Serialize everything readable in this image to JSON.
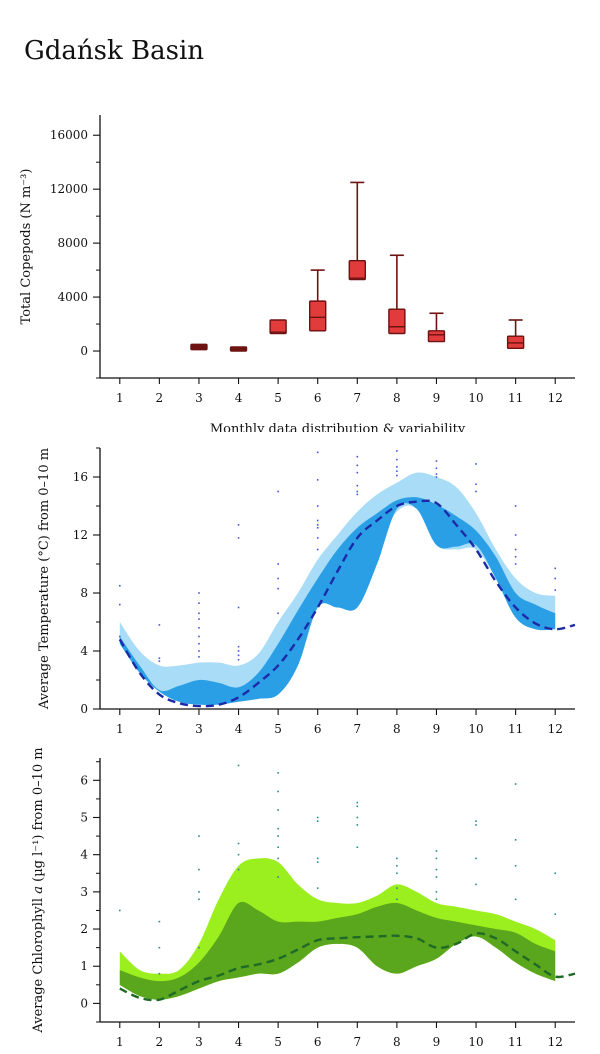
{
  "page": {
    "title": "Gdańsk Basin"
  },
  "colors": {
    "axis": "#111111",
    "box_fill": "#e23b3b",
    "box_fill_dark": "#6e1212",
    "box_stroke": "#6e1212",
    "temp_outer": "#a8dcf7",
    "temp_inner": "#2b9fe6",
    "temp_line": "#1c2aa8",
    "temp_dots": "#3f58e0",
    "chl_outer": "#9bef1f",
    "chl_inner": "#5aa61d",
    "chl_line": "#1f6a26",
    "chl_dots": "#2a8a8a"
  },
  "chart_data": [
    {
      "type": "box",
      "ylabel": "Total Copepods (N m⁻³)",
      "xlabel": "Monthly data distribution & variability",
      "x_ticks": [
        1,
        2,
        3,
        4,
        5,
        6,
        7,
        8,
        9,
        10,
        11,
        12
      ],
      "y_ticks": [
        0,
        4000,
        8000,
        12000,
        16000
      ],
      "xlim": [
        0.5,
        12.5
      ],
      "ylim": [
        -2000,
        17500
      ],
      "boxes": [
        {
          "month": 3,
          "low": 100,
          "q1": 100,
          "median": 300,
          "q3": 500,
          "high": 500,
          "dark": true
        },
        {
          "month": 4,
          "low": 0,
          "q1": 0,
          "median": 200,
          "q3": 300,
          "high": 300,
          "dark": true
        },
        {
          "month": 5,
          "low": 1300,
          "q1": 1300,
          "median": 1400,
          "q3": 2300,
          "high": 2300,
          "dark": false
        },
        {
          "month": 6,
          "low": 1500,
          "q1": 1500,
          "median": 2500,
          "q3": 3700,
          "high": 6000,
          "dark": false
        },
        {
          "month": 7,
          "low": 5300,
          "q1": 5300,
          "median": 5400,
          "q3": 6700,
          "high": 12500,
          "dark": false
        },
        {
          "month": 8,
          "low": 1300,
          "q1": 1300,
          "median": 1800,
          "q3": 3100,
          "high": 7100,
          "dark": false
        },
        {
          "month": 9,
          "low": 700,
          "q1": 700,
          "median": 1200,
          "q3": 1500,
          "high": 2800,
          "dark": false
        },
        {
          "month": 11,
          "low": 200,
          "q1": 200,
          "median": 600,
          "q3": 1100,
          "high": 2300,
          "dark": false
        }
      ]
    },
    {
      "type": "area",
      "ylabel": "Average Temperature (°C) from 0–10 m",
      "x_ticks": [
        1,
        2,
        3,
        4,
        5,
        6,
        7,
        8,
        9,
        10,
        11,
        12
      ],
      "y_ticks": [
        0,
        4,
        8,
        12,
        16
      ],
      "xlim": [
        0.5,
        12.5
      ],
      "ylim": [
        0,
        18
      ],
      "outer_band": {
        "x": [
          1,
          1.5,
          2,
          2.5,
          3,
          3.5,
          4,
          4.5,
          5,
          5.5,
          6,
          6.5,
          7,
          7.5,
          8,
          8.5,
          9,
          9.5,
          10,
          10.5,
          11,
          11.5,
          12
        ],
        "upper": [
          6.0,
          4.0,
          3.0,
          3.0,
          3.2,
          3.2,
          3.0,
          3.8,
          6.0,
          8.0,
          10.3,
          12.0,
          13.6,
          14.8,
          15.6,
          16.3,
          16.0,
          15.3,
          13.5,
          11.0,
          9.0,
          8.0,
          7.8
        ],
        "lower": [
          4.5,
          2.5,
          1.2,
          0.5,
          0.3,
          0.3,
          0.5,
          0.7,
          1.0,
          3.0,
          7.0,
          8.0,
          8.5,
          11.0,
          13.6,
          13.8,
          11.3,
          11.0,
          11.0,
          9.0,
          6.3,
          5.5,
          5.5
        ]
      },
      "inner_band": {
        "x": [
          1,
          1.5,
          2,
          2.5,
          3,
          3.5,
          4,
          4.5,
          5,
          5.5,
          6,
          6.5,
          7,
          7.5,
          8,
          8.5,
          9,
          9.5,
          10,
          10.5,
          11,
          11.5,
          12
        ],
        "upper": [
          5.0,
          3.0,
          1.3,
          1.6,
          2.0,
          1.8,
          1.5,
          2.5,
          4.5,
          6.8,
          9.0,
          11.0,
          12.5,
          13.5,
          14.4,
          14.6,
          14.1,
          13.3,
          12.3,
          10.5,
          8.0,
          7.2,
          6.6
        ],
        "lower": [
          4.5,
          2.5,
          1.2,
          0.5,
          0.3,
          0.3,
          0.5,
          0.7,
          1.0,
          3.0,
          7.0,
          7.0,
          7.0,
          10.0,
          13.8,
          13.8,
          11.3,
          11.2,
          11.3,
          9.0,
          6.3,
          5.5,
          5.5
        ]
      },
      "mean_line": {
        "x": [
          1,
          1.5,
          2,
          2.5,
          3,
          3.5,
          4,
          4.5,
          5,
          5.5,
          6,
          6.5,
          7,
          7.5,
          8,
          8.5,
          9,
          9.5,
          10,
          10.5,
          11,
          11.5,
          12,
          12.5
        ],
        "y": [
          4.8,
          2.5,
          1.0,
          0.4,
          0.2,
          0.3,
          0.8,
          1.8,
          3.0,
          4.8,
          7.0,
          9.5,
          11.8,
          13.0,
          14.0,
          14.3,
          14.2,
          12.7,
          11.0,
          8.8,
          7.0,
          5.9,
          5.5,
          5.8
        ]
      },
      "points": [
        [
          1,
          8.5
        ],
        [
          1,
          7.2
        ],
        [
          1,
          5.0
        ],
        [
          2,
          5.8
        ],
        [
          2,
          3.5
        ],
        [
          2,
          3.3
        ],
        [
          3,
          8.0
        ],
        [
          3,
          7.3
        ],
        [
          3,
          6.6
        ],
        [
          3,
          6.2
        ],
        [
          3,
          5.6
        ],
        [
          3,
          5.0
        ],
        [
          3,
          4.5
        ],
        [
          3,
          4.0
        ],
        [
          3,
          3.6
        ],
        [
          4,
          12.7
        ],
        [
          4,
          11.8
        ],
        [
          4,
          7.0
        ],
        [
          4,
          4.3
        ],
        [
          4,
          4.0
        ],
        [
          4,
          3.7
        ],
        [
          4,
          3.4
        ],
        [
          5,
          15.0
        ],
        [
          5,
          10.0
        ],
        [
          5,
          9.0
        ],
        [
          5,
          8.3
        ],
        [
          5,
          6.6
        ],
        [
          6,
          17.7
        ],
        [
          6,
          15.8
        ],
        [
          6,
          14.0
        ],
        [
          6,
          13.0
        ],
        [
          6,
          12.7
        ],
        [
          6,
          12.5
        ],
        [
          6,
          11.8
        ],
        [
          6,
          11.0
        ],
        [
          7,
          17.4
        ],
        [
          7,
          16.8
        ],
        [
          7,
          16.3
        ],
        [
          7,
          15.4
        ],
        [
          7,
          15.0
        ],
        [
          7,
          14.8
        ],
        [
          8,
          17.8
        ],
        [
          8,
          17.2
        ],
        [
          8,
          16.7
        ],
        [
          8,
          16.4
        ],
        [
          8,
          16.1
        ],
        [
          9,
          17.1
        ],
        [
          9,
          16.6
        ],
        [
          9,
          16.2
        ],
        [
          9,
          16.0
        ],
        [
          10,
          16.9
        ],
        [
          10,
          15.5
        ],
        [
          10,
          15.0
        ],
        [
          11,
          14.0
        ],
        [
          11,
          12.0
        ],
        [
          11,
          11.0
        ],
        [
          11,
          10.5
        ],
        [
          11,
          10.0
        ],
        [
          12,
          9.7
        ],
        [
          12,
          9.0
        ],
        [
          12,
          8.2
        ]
      ]
    },
    {
      "type": "area",
      "ylabel": "Average Chlorophyll a (µg l⁻¹) from 0–10 m",
      "ylabel_parts": [
        "Average Chlorophyll ",
        "a",
        " (µg l⁻¹) from 0–10 m"
      ],
      "x_ticks": [
        1,
        2,
        3,
        4,
        5,
        6,
        7,
        8,
        9,
        10,
        11,
        12
      ],
      "y_ticks": [
        0,
        1,
        2,
        3,
        4,
        5,
        6
      ],
      "xlim": [
        0.5,
        12.5
      ],
      "ylim": [
        -0.5,
        6.6
      ],
      "outer_band": {
        "x": [
          1,
          1.5,
          2,
          2.5,
          3,
          3.5,
          4,
          4.5,
          5,
          5.5,
          6,
          6.5,
          7,
          7.5,
          8,
          8.5,
          9,
          9.5,
          10,
          10.5,
          11,
          11.5,
          12
        ],
        "upper": [
          1.4,
          0.9,
          0.8,
          0.9,
          1.6,
          2.8,
          3.7,
          3.9,
          3.8,
          3.2,
          2.8,
          2.7,
          2.7,
          2.9,
          3.2,
          3.0,
          2.7,
          2.6,
          2.5,
          2.4,
          2.2,
          2.0,
          1.7
        ],
        "lower": [
          0.5,
          0.2,
          0.1,
          0.2,
          0.4,
          0.6,
          0.7,
          0.8,
          0.8,
          1.1,
          1.5,
          1.6,
          1.5,
          1.0,
          0.8,
          1.0,
          1.2,
          1.6,
          1.8,
          1.5,
          1.1,
          0.8,
          0.6
        ]
      },
      "inner_band": {
        "x": [
          1,
          1.5,
          2,
          2.5,
          3,
          3.5,
          4,
          4.5,
          5,
          5.5,
          6,
          6.5,
          7,
          7.5,
          8,
          8.5,
          9,
          9.5,
          10,
          10.5,
          11,
          11.5,
          12
        ],
        "upper": [
          0.9,
          0.7,
          0.6,
          0.7,
          1.1,
          1.8,
          2.7,
          2.5,
          2.2,
          2.2,
          2.2,
          2.3,
          2.4,
          2.6,
          2.7,
          2.5,
          2.3,
          2.2,
          2.1,
          2.0,
          1.9,
          1.6,
          1.4
        ],
        "lower": [
          0.5,
          0.2,
          0.1,
          0.2,
          0.4,
          0.6,
          0.7,
          0.8,
          0.8,
          1.1,
          1.5,
          1.6,
          1.5,
          1.0,
          0.8,
          1.0,
          1.2,
          1.6,
          1.8,
          1.5,
          1.1,
          0.8,
          0.6
        ]
      },
      "mean_line": {
        "x": [
          1,
          1.5,
          2,
          2.5,
          3,
          3.5,
          4,
          4.5,
          5,
          5.5,
          6,
          6.5,
          7,
          7.5,
          8,
          8.5,
          9,
          9.5,
          10,
          10.5,
          11,
          11.5,
          12,
          12.5
        ],
        "y": [
          0.4,
          0.15,
          0.1,
          0.35,
          0.6,
          0.75,
          0.95,
          1.05,
          1.2,
          1.45,
          1.7,
          1.75,
          1.78,
          1.8,
          1.82,
          1.75,
          1.5,
          1.6,
          1.88,
          1.75,
          1.4,
          1.05,
          0.72,
          0.8
        ]
      },
      "points": [
        [
          1,
          2.5
        ],
        [
          2,
          2.2
        ],
        [
          2,
          1.5
        ],
        [
          2,
          0.8
        ],
        [
          3,
          4.5
        ],
        [
          3,
          3.6
        ],
        [
          3,
          3.0
        ],
        [
          3,
          2.8
        ],
        [
          3,
          1.5
        ],
        [
          4,
          6.4
        ],
        [
          4,
          4.3
        ],
        [
          4,
          4.0
        ],
        [
          4,
          3.6
        ],
        [
          5,
          6.2
        ],
        [
          5,
          5.7
        ],
        [
          5,
          5.2
        ],
        [
          5,
          4.7
        ],
        [
          5,
          4.5
        ],
        [
          5,
          4.2
        ],
        [
          5,
          3.9
        ],
        [
          5,
          3.4
        ],
        [
          6,
          5.0
        ],
        [
          6,
          4.9
        ],
        [
          6,
          3.9
        ],
        [
          6,
          3.8
        ],
        [
          6,
          3.1
        ],
        [
          7,
          5.4
        ],
        [
          7,
          5.3
        ],
        [
          7,
          5.0
        ],
        [
          7,
          4.8
        ],
        [
          7,
          4.2
        ],
        [
          8,
          3.9
        ],
        [
          8,
          3.7
        ],
        [
          8,
          3.5
        ],
        [
          8,
          3.1
        ],
        [
          8,
          2.8
        ],
        [
          9,
          4.1
        ],
        [
          9,
          3.9
        ],
        [
          9,
          3.6
        ],
        [
          9,
          3.4
        ],
        [
          9,
          3.0
        ],
        [
          9,
          2.8
        ],
        [
          10,
          4.9
        ],
        [
          10,
          4.8
        ],
        [
          10,
          3.9
        ],
        [
          10,
          3.2
        ],
        [
          11,
          5.9
        ],
        [
          11,
          4.4
        ],
        [
          11,
          3.7
        ],
        [
          11,
          2.8
        ],
        [
          12,
          3.5
        ],
        [
          12,
          2.4
        ]
      ]
    }
  ]
}
